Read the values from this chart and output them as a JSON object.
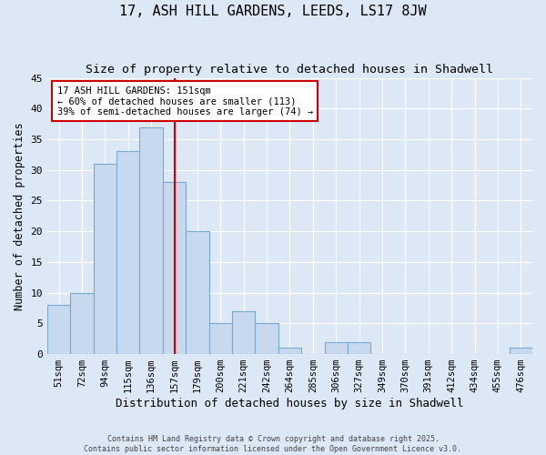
{
  "title": "17, ASH HILL GARDENS, LEEDS, LS17 8JW",
  "subtitle": "Size of property relative to detached houses in Shadwell",
  "xlabel": "Distribution of detached houses by size in Shadwell",
  "ylabel": "Number of detached properties",
  "bar_values": [
    8,
    10,
    31,
    33,
    37,
    28,
    20,
    5,
    7,
    5,
    1,
    0,
    2,
    2,
    0,
    0,
    0,
    0,
    0,
    0,
    1
  ],
  "categories": [
    "51sqm",
    "72sqm",
    "94sqm",
    "115sqm",
    "136sqm",
    "157sqm",
    "179sqm",
    "200sqm",
    "221sqm",
    "242sqm",
    "264sqm",
    "285sqm",
    "306sqm",
    "327sqm",
    "349sqm",
    "370sqm",
    "391sqm",
    "412sqm",
    "434sqm",
    "455sqm",
    "476sqm"
  ],
  "bar_color": "#c8d8ee",
  "bar_edge_color": "#7aaad0",
  "vline_x": 5,
  "vline_color": "#cc0000",
  "annotation_line1": "17 ASH HILL GARDENS: 151sqm",
  "annotation_line2": "← 60% of detached houses are smaller (113)",
  "annotation_line3": "39% of semi-detached houses are larger (74) →",
  "annotation_box_facecolor": "#ffffff",
  "annotation_box_edgecolor": "#cc0000",
  "ylim": [
    0,
    45
  ],
  "yticks": [
    0,
    5,
    10,
    15,
    20,
    25,
    30,
    35,
    40,
    45
  ],
  "background_color": "#dce8f5",
  "plot_background": "#dce8f5",
  "grid_color": "#ffffff",
  "footer_line1": "Contains HM Land Registry data © Crown copyright and database right 2025.",
  "footer_line2": "Contains public sector information licensed under the Open Government Licence v3.0.",
  "title_fontsize": 11,
  "subtitle_fontsize": 9.5,
  "xlabel_fontsize": 9,
  "ylabel_fontsize": 8.5,
  "tick_fontsize": 7.5,
  "annot_fontsize": 7.5,
  "footer_fontsize": 6
}
